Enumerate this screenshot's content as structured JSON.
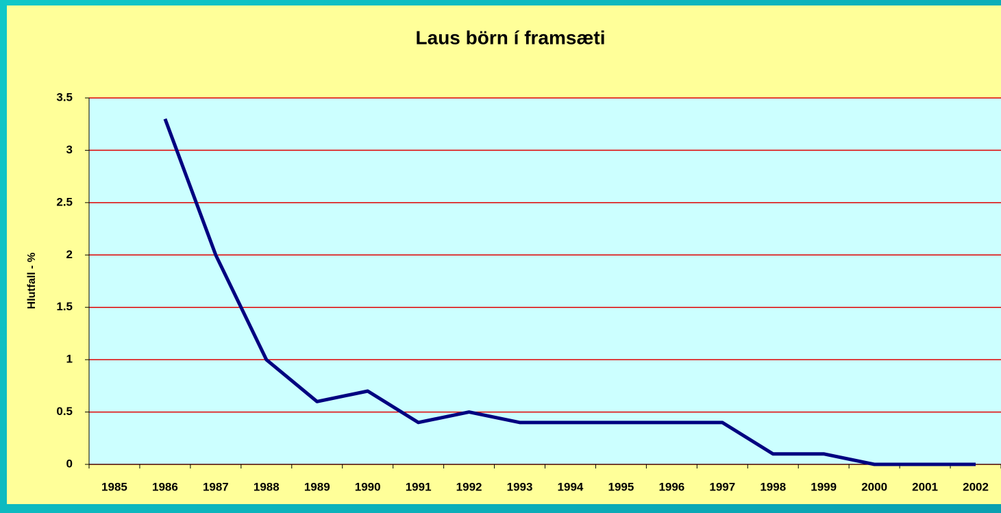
{
  "chart_data": {
    "type": "line",
    "title": "Laus börn í framsæti",
    "y_label": "Hlutfall - %",
    "categories": [
      "1985",
      "1986",
      "1987",
      "1988",
      "1989",
      "1990",
      "1991",
      "1992",
      "1993",
      "1994",
      "1995",
      "1996",
      "1997",
      "1998",
      "1999",
      "2000",
      "2001",
      "2002"
    ],
    "series": [
      {
        "name": "Hlutfall",
        "color": "#000080",
        "values": [
          null,
          3.3,
          2.0,
          1.0,
          0.6,
          0.7,
          0.4,
          0.5,
          0.4,
          0.4,
          0.4,
          0.4,
          0.4,
          0.1,
          0.1,
          0,
          0,
          0
        ]
      }
    ],
    "ylim": [
      0,
      3.5
    ],
    "yticks": [
      0,
      0.5,
      1,
      1.5,
      2,
      2.5,
      3,
      3.5
    ],
    "grid": true,
    "grid_color": "#e00000",
    "plot_background": "#ccffff"
  }
}
